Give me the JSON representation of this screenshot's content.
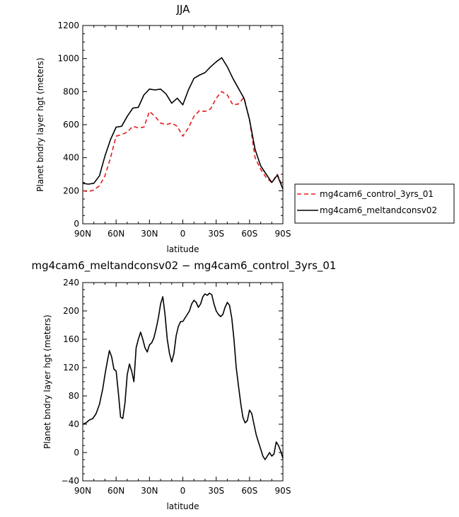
{
  "chart_data": [
    {
      "type": "line",
      "title": "JJA",
      "xlabel": "latitude",
      "ylabel": "Planet bndry layer hgt (meters)",
      "xlim": [
        90,
        -90
      ],
      "ylim": [
        0,
        1200
      ],
      "x_ticks": [
        90,
        60,
        30,
        0,
        -30,
        -60,
        -90
      ],
      "x_tick_labels": [
        "90N",
        "60N",
        "30N",
        "0",
        "30S",
        "60S",
        "90S"
      ],
      "y_ticks": [
        0,
        200,
        400,
        600,
        800,
        1000,
        1200
      ],
      "y_tick_labels": [
        "0",
        "200",
        "400",
        "600",
        "800",
        "1000",
        "1200"
      ],
      "legend_position": "right",
      "x": [
        90,
        85,
        80,
        75,
        70,
        65,
        60,
        55,
        50,
        45,
        40,
        35,
        30,
        25,
        20,
        15,
        10,
        5,
        0,
        -5,
        -10,
        -15,
        -20,
        -25,
        -30,
        -35,
        -40,
        -45,
        -50,
        -55,
        -60,
        -65,
        -70,
        -75,
        -80,
        -85,
        -90
      ],
      "series": [
        {
          "name": "mg4cam6_control_3yrs_01",
          "color": "#e41a1c",
          "dash": "dashed",
          "values": [
            200,
            195,
            205,
            230,
            290,
            400,
            530,
            540,
            555,
            590,
            580,
            585,
            680,
            650,
            610,
            600,
            610,
            590,
            530,
            580,
            650,
            685,
            680,
            695,
            760,
            800,
            780,
            720,
            725,
            765,
            630,
            400,
            330,
            280,
            250,
            300,
            220
          ]
        },
        {
          "name": "mg4cam6_meltandconsv02",
          "color": "#000000",
          "dash": "solid",
          "values": [
            245,
            240,
            245,
            290,
            410,
            510,
            585,
            590,
            650,
            700,
            705,
            780,
            815,
            810,
            815,
            785,
            730,
            760,
            720,
            810,
            880,
            900,
            915,
            950,
            980,
            1005,
            950,
            880,
            820,
            760,
            630,
            450,
            350,
            300,
            250,
            295,
            210
          ]
        }
      ]
    },
    {
      "type": "line",
      "title": "mg4cam6_meltandconsv02 − mg4cam6_control_3yrs_01",
      "xlabel": "latitude",
      "ylabel": "Planet bndry layer hgt (meters)",
      "xlim": [
        90,
        -90
      ],
      "ylim": [
        -40,
        240
      ],
      "x_ticks": [
        90,
        60,
        30,
        0,
        -30,
        -60,
        -90
      ],
      "x_tick_labels": [
        "90N",
        "60N",
        "30N",
        "0",
        "30S",
        "60S",
        "90S"
      ],
      "y_ticks": [
        -40,
        0,
        40,
        80,
        120,
        160,
        200,
        240
      ],
      "y_tick_labels": [
        "−40",
        "0",
        "40",
        "80",
        "120",
        "160",
        "200",
        "240"
      ],
      "x": [
        90,
        87,
        84,
        81,
        78,
        75,
        72,
        70,
        68,
        66,
        64,
        62,
        60,
        58,
        56,
        54,
        52,
        50,
        48,
        46,
        44,
        42,
        40,
        38,
        36,
        34,
        32,
        30,
        28,
        26,
        24,
        22,
        20,
        18,
        16,
        14,
        12,
        10,
        8,
        6,
        4,
        2,
        0,
        -2,
        -4,
        -6,
        -8,
        -10,
        -12,
        -14,
        -16,
        -18,
        -20,
        -22,
        -24,
        -26,
        -28,
        -30,
        -32,
        -34,
        -36,
        -38,
        -40,
        -42,
        -44,
        -46,
        -48,
        -50,
        -52,
        -54,
        -56,
        -58,
        -60,
        -62,
        -64,
        -66,
        -68,
        -70,
        -72,
        -74,
        -76,
        -78,
        -80,
        -82,
        -84,
        -86,
        -88,
        -90
      ],
      "series": [
        {
          "name": "",
          "color": "#000000",
          "values": [
            40,
            42,
            46,
            48,
            55,
            68,
            90,
            110,
            128,
            144,
            135,
            118,
            115,
            85,
            50,
            48,
            70,
            110,
            125,
            115,
            100,
            148,
            160,
            170,
            160,
            148,
            142,
            152,
            155,
            162,
            175,
            190,
            210,
            220,
            195,
            160,
            140,
            128,
            140,
            165,
            178,
            185,
            185,
            190,
            195,
            200,
            210,
            215,
            212,
            205,
            210,
            220,
            224,
            222,
            225,
            223,
            210,
            200,
            195,
            192,
            195,
            205,
            212,
            208,
            190,
            160,
            120,
            95,
            70,
            50,
            42,
            45,
            60,
            55,
            40,
            25,
            15,
            5,
            -5,
            -10,
            -5,
            0,
            -5,
            -2,
            15,
            10,
            2,
            -8
          ]
        }
      ]
    }
  ]
}
